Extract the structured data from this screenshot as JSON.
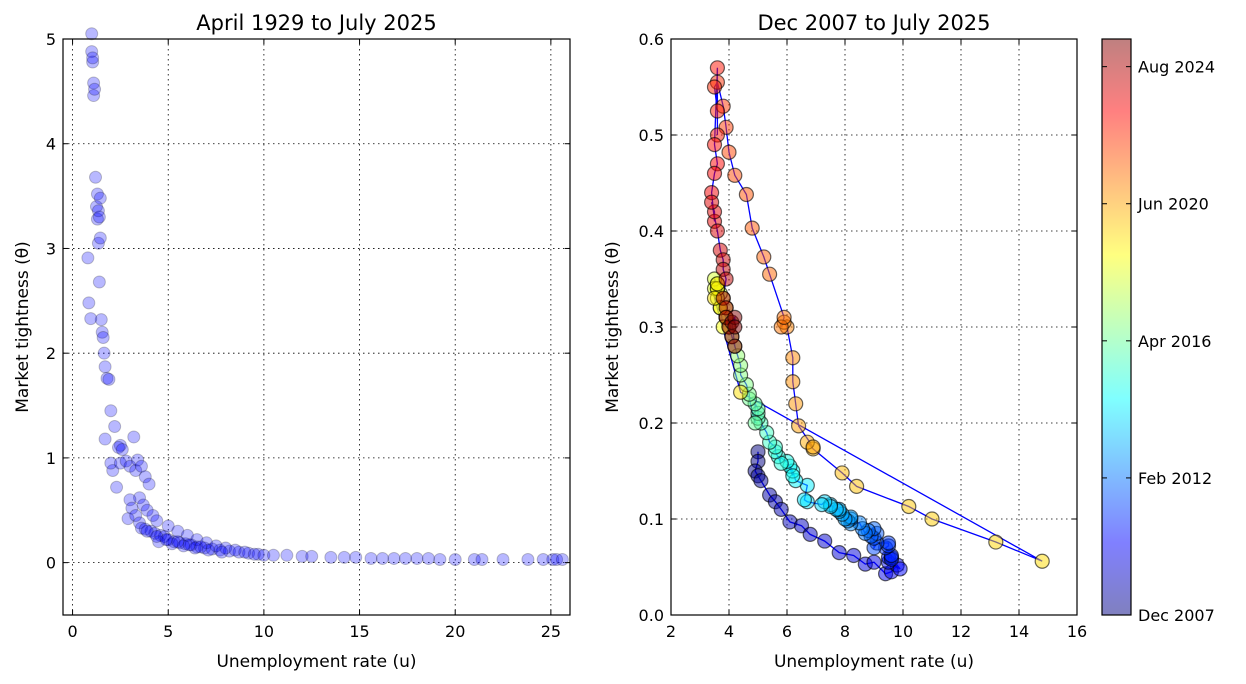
{
  "chart_data": [
    {
      "type": "scatter",
      "title": "April 1929 to July 2025",
      "xlabel": "Unemployment rate (u)",
      "ylabel": "Market tightness (θ)",
      "xlim": [
        -0.5,
        26
      ],
      "ylim": [
        -0.5,
        5
      ],
      "xticks": [
        "0",
        "5",
        "10",
        "15",
        "20",
        "25"
      ],
      "yticks": [
        "0",
        "1",
        "2",
        "3",
        "4",
        "5"
      ],
      "grid": true,
      "color": "#0000ff",
      "x": [
        1.0,
        1.0,
        1.05,
        1.05,
        1.1,
        1.1,
        1.15,
        1.2,
        1.25,
        1.3,
        1.3,
        1.35,
        1.35,
        1.4,
        1.4,
        1.45,
        1.45,
        1.5,
        1.55,
        1.6,
        1.65,
        1.7,
        1.8,
        1.9,
        2.0,
        2.2,
        0.8,
        0.85,
        0.95,
        1.7,
        2.1,
        2.0,
        2.3,
        2.5,
        2.5,
        2.4,
        2.6,
        2.8,
        3.0,
        3.2,
        2.9,
        3.3,
        3.4,
        3.6,
        3.8,
        4.0,
        3.5,
        3.7,
        3.9,
        4.2,
        4.4,
        3.0,
        3.1,
        3.3,
        3.5,
        3.6,
        3.8,
        4.1,
        4.3,
        4.6,
        4.8,
        5.0,
        5.3,
        5.6,
        5.9,
        6.2,
        6.5,
        6.9,
        7.3,
        7.7,
        8.2,
        8.7,
        9.2,
        9.7,
        5.0,
        5.5,
        6.0,
        6.5,
        7.0,
        7.5,
        8.0,
        8.5,
        9.0,
        9.5,
        10.0,
        4.5,
        5.2,
        5.8,
        6.4,
        7.1,
        7.8,
        3.9,
        4.4,
        4.9,
        5.5,
        6.1,
        6.7,
        10.5,
        11.2,
        12.0,
        12.5,
        13.5,
        14.2,
        14.8,
        15.6,
        16.2,
        16.8,
        17.4,
        18.0,
        18.6,
        19.2,
        20.0,
        21.0,
        21.4,
        22.5,
        23.8,
        24.6,
        25.1,
        25.3,
        25.6
      ],
      "y": [
        5.05,
        4.88,
        4.78,
        4.82,
        4.58,
        4.46,
        4.52,
        3.68,
        3.4,
        3.52,
        3.28,
        3.36,
        3.05,
        3.3,
        2.68,
        3.48,
        3.1,
        2.32,
        2.2,
        2.15,
        2.0,
        1.87,
        1.76,
        1.75,
        1.45,
        1.3,
        2.91,
        2.48,
        2.33,
        1.18,
        0.88,
        0.95,
        0.72,
        0.95,
        1.12,
        1.1,
        1.08,
        0.97,
        0.92,
        1.2,
        0.42,
        0.88,
        0.98,
        0.92,
        0.82,
        0.75,
        0.62,
        0.55,
        0.5,
        0.45,
        0.4,
        0.6,
        0.52,
        0.45,
        0.38,
        0.33,
        0.32,
        0.3,
        0.28,
        0.26,
        0.25,
        0.22,
        0.2,
        0.19,
        0.18,
        0.17,
        0.15,
        0.14,
        0.13,
        0.12,
        0.11,
        0.1,
        0.09,
        0.08,
        0.35,
        0.3,
        0.26,
        0.22,
        0.19,
        0.16,
        0.14,
        0.12,
        0.1,
        0.08,
        0.07,
        0.2,
        0.18,
        0.16,
        0.14,
        0.12,
        0.1,
        0.3,
        0.25,
        0.22,
        0.2,
        0.17,
        0.15,
        0.07,
        0.07,
        0.06,
        0.06,
        0.05,
        0.05,
        0.05,
        0.04,
        0.04,
        0.04,
        0.04,
        0.04,
        0.04,
        0.03,
        0.03,
        0.03,
        0.03,
        0.03,
        0.03,
        0.03,
        0.03,
        0.03,
        0.03
      ]
    },
    {
      "type": "scatter",
      "title": "Dec 2007 to July 2025",
      "xlabel": "Unemployment rate (u)",
      "ylabel": "Market tightness (θ)",
      "xlim": [
        2,
        16
      ],
      "ylim": [
        0.0,
        0.6
      ],
      "xticks": [
        "2",
        "4",
        "6",
        "8",
        "10",
        "12",
        "14",
        "16"
      ],
      "yticks": [
        "0.0",
        "0.1",
        "0.2",
        "0.3",
        "0.4",
        "0.5",
        "0.6"
      ],
      "grid": true,
      "line_color": "#0000ff",
      "colorbar": {
        "colors": [
          "#00007f",
          "#0000ff",
          "#0080ff",
          "#00ffff",
          "#80ff80",
          "#ffff00",
          "#ff8000",
          "#ff0000",
          "#7f0000"
        ],
        "ticks": [
          "Dec 2007",
          "Feb 2012",
          "Apr 2016",
          "Jun 2020",
          "Aug 2024"
        ],
        "tick_fractions": [
          0.0,
          0.238,
          0.476,
          0.714,
          0.952
        ]
      },
      "x": [
        5.0,
        5.0,
        4.9,
        5.0,
        5.1,
        5.4,
        5.6,
        5.8,
        6.1,
        6.5,
        6.8,
        7.3,
        7.8,
        8.3,
        8.7,
        9.0,
        9.4,
        9.6,
        9.8,
        9.9,
        9.5,
        9.5,
        9.6,
        9.6,
        9.6,
        9.4,
        9.5,
        9.5,
        9.1,
        9.0,
        9.0,
        9.1,
        8.9,
        9.0,
        8.8,
        8.7,
        8.6,
        8.5,
        8.2,
        8.2,
        8.1,
        8.2,
        8.0,
        7.9,
        7.8,
        7.8,
        7.7,
        7.5,
        7.5,
        7.3,
        7.2,
        6.7,
        6.6,
        6.7,
        6.3,
        6.2,
        6.1,
        6.2,
        6.0,
        5.7,
        5.8,
        5.6,
        5.6,
        5.4,
        5.3,
        5.1,
        5.0,
        5.0,
        5.0,
        4.9,
        4.9,
        4.7,
        4.7,
        4.6,
        4.4,
        4.4,
        4.3,
        4.2,
        4.1,
        4.0,
        3.9,
        3.9,
        3.8,
        3.7,
        3.6,
        3.6,
        3.5,
        3.5,
        3.6,
        3.7,
        3.9,
        3.8,
        3.7,
        3.6,
        3.6,
        3.5,
        4.4,
        14.8,
        13.2,
        11.0,
        10.2,
        8.4,
        7.9,
        6.9,
        6.7,
        6.9,
        6.4,
        6.3,
        6.2,
        6.2,
        6.0,
        5.9,
        5.8,
        5.9,
        5.4,
        5.2,
        4.8,
        4.6,
        4.2,
        4.0,
        3.9,
        3.8,
        3.6,
        3.5,
        3.6,
        3.6,
        3.6,
        3.5,
        3.6,
        3.5,
        3.4,
        3.5,
        3.5,
        3.4,
        3.6,
        3.7,
        3.8,
        3.8,
        3.9,
        3.8,
        3.9,
        3.9,
        4.0,
        4.1,
        4.2,
        4.1,
        4.2,
        4.2
      ],
      "y": [
        0.17,
        0.16,
        0.15,
        0.145,
        0.14,
        0.125,
        0.118,
        0.11,
        0.097,
        0.093,
        0.084,
        0.077,
        0.065,
        0.062,
        0.053,
        0.055,
        0.043,
        0.045,
        0.052,
        0.048,
        0.055,
        0.06,
        0.06,
        0.058,
        0.062,
        0.07,
        0.072,
        0.075,
        0.075,
        0.07,
        0.08,
        0.085,
        0.082,
        0.09,
        0.088,
        0.085,
        0.09,
        0.096,
        0.095,
        0.1,
        0.098,
        0.102,
        0.1,
        0.105,
        0.108,
        0.11,
        0.11,
        0.115,
        0.113,
        0.118,
        0.115,
        0.118,
        0.12,
        0.135,
        0.14,
        0.15,
        0.155,
        0.145,
        0.16,
        0.165,
        0.158,
        0.17,
        0.175,
        0.18,
        0.19,
        0.2,
        0.205,
        0.21,
        0.215,
        0.22,
        0.2,
        0.225,
        0.23,
        0.24,
        0.25,
        0.26,
        0.27,
        0.28,
        0.29,
        0.3,
        0.31,
        0.32,
        0.33,
        0.335,
        0.34,
        0.345,
        0.35,
        0.34,
        0.33,
        0.32,
        0.31,
        0.3,
        0.32,
        0.34,
        0.345,
        0.33,
        0.232,
        0.056,
        0.076,
        0.1,
        0.113,
        0.134,
        0.148,
        0.173,
        0.18,
        0.175,
        0.197,
        0.22,
        0.243,
        0.268,
        0.3,
        0.305,
        0.3,
        0.31,
        0.355,
        0.373,
        0.403,
        0.438,
        0.458,
        0.482,
        0.508,
        0.53,
        0.555,
        0.55,
        0.525,
        0.5,
        0.57,
        0.49,
        0.47,
        0.46,
        0.44,
        0.41,
        0.42,
        0.43,
        0.4,
        0.38,
        0.37,
        0.36,
        0.35,
        0.33,
        0.32,
        0.31,
        0.3,
        0.29,
        0.28,
        0.305,
        0.31,
        0.3
      ]
    }
  ]
}
